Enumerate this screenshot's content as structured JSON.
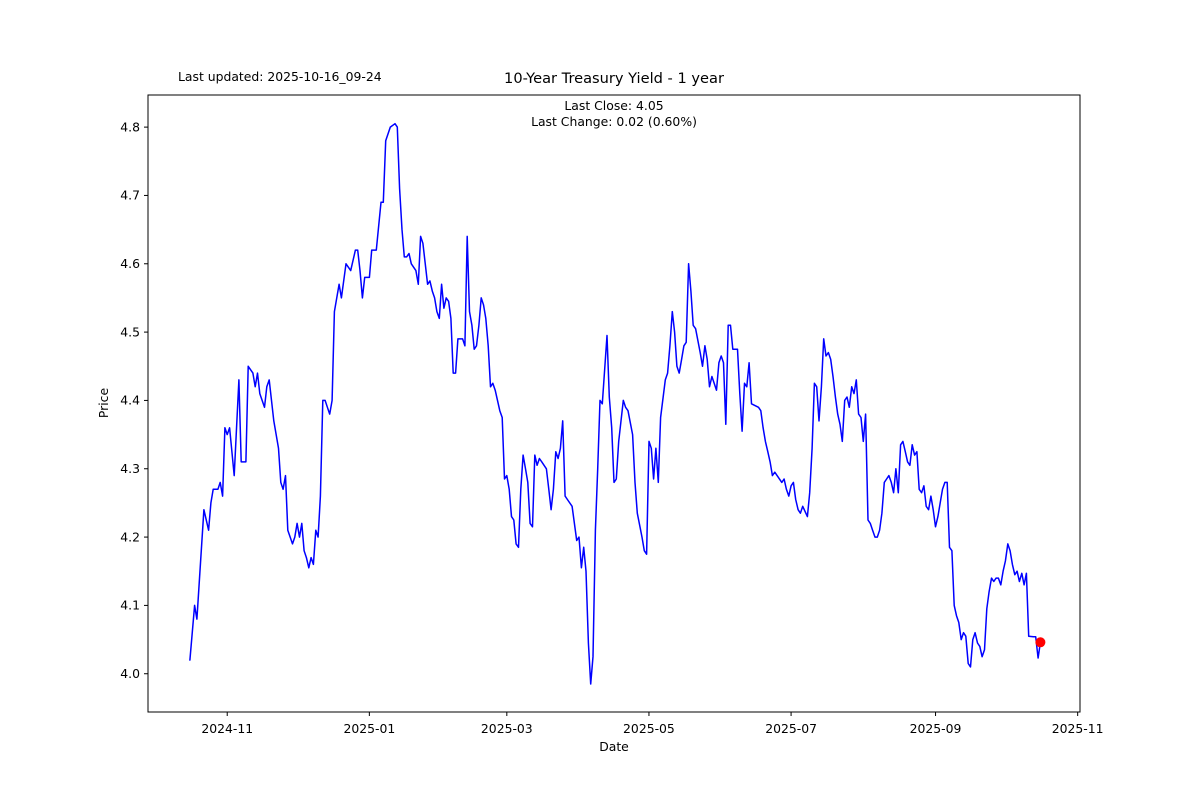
{
  "header": {
    "last_updated": "Last updated: 2025-10-16_09-24"
  },
  "chart_data": {
    "type": "line",
    "title": "10-Year Treasury Yield - 1 year",
    "annotation_line1": "Last Close: 4.05",
    "annotation_line2": "Last Change: 0.02 (0.60%)",
    "last_close": 4.05,
    "last_change": "0.02 (0.60%)",
    "xlabel": "Date",
    "ylabel": "Price",
    "grid": false,
    "legend": "none",
    "line_color": "#0000ff",
    "line_width": 1.5,
    "last_point_marker": {
      "color": "#ff0000",
      "radius": 5
    },
    "ylim": [
      3.944,
      4.847
    ],
    "xlim": [
      "2024-09-28",
      "2025-11-02"
    ],
    "yticks": [
      "4.0",
      "4.1",
      "4.2",
      "4.3",
      "4.4",
      "4.5",
      "4.6",
      "4.7",
      "4.8"
    ],
    "xticks": [
      {
        "date": "2024-11-01",
        "label": "2024-11"
      },
      {
        "date": "2025-01-01",
        "label": "2025-01"
      },
      {
        "date": "2025-03-01",
        "label": "2025-03"
      },
      {
        "date": "2025-05-01",
        "label": "2025-05"
      },
      {
        "date": "2025-07-01",
        "label": "2025-07"
      },
      {
        "date": "2025-09-01",
        "label": "2025-09"
      },
      {
        "date": "2025-11-01",
        "label": "2025-11"
      }
    ],
    "series": [
      [
        "2024-10-16",
        4.02
      ],
      [
        "2024-10-18",
        4.1
      ],
      [
        "2024-10-19",
        4.08
      ],
      [
        "2024-10-22",
        4.24
      ],
      [
        "2024-10-24",
        4.21
      ],
      [
        "2024-10-25",
        4.25
      ],
      [
        "2024-10-26",
        4.27
      ],
      [
        "2024-10-28",
        4.27
      ],
      [
        "2024-10-29",
        4.28
      ],
      [
        "2024-10-30",
        4.26
      ],
      [
        "2024-10-31",
        4.36
      ],
      [
        "2024-11-01",
        4.35
      ],
      [
        "2024-11-02",
        4.36
      ],
      [
        "2024-11-04",
        4.29
      ],
      [
        "2024-11-06",
        4.43
      ],
      [
        "2024-11-07",
        4.31
      ],
      [
        "2024-11-09",
        4.31
      ],
      [
        "2024-11-10",
        4.45
      ],
      [
        "2024-11-12",
        4.44
      ],
      [
        "2024-11-13",
        4.42
      ],
      [
        "2024-11-14",
        4.44
      ],
      [
        "2024-11-15",
        4.41
      ],
      [
        "2024-11-17",
        4.39
      ],
      [
        "2024-11-18",
        4.42
      ],
      [
        "2024-11-19",
        4.43
      ],
      [
        "2024-11-20",
        4.4
      ],
      [
        "2024-11-21",
        4.37
      ],
      [
        "2024-11-23",
        4.33
      ],
      [
        "2024-11-24",
        4.28
      ],
      [
        "2024-11-25",
        4.27
      ],
      [
        "2024-11-26",
        4.29
      ],
      [
        "2024-11-27",
        4.21
      ],
      [
        "2024-11-29",
        4.19
      ],
      [
        "2024-11-30",
        4.2
      ],
      [
        "2024-12-01",
        4.22
      ],
      [
        "2024-12-02",
        4.2
      ],
      [
        "2024-12-03",
        4.22
      ],
      [
        "2024-12-04",
        4.18
      ],
      [
        "2024-12-05",
        4.17
      ],
      [
        "2024-12-06",
        4.155
      ],
      [
        "2024-12-07",
        4.17
      ],
      [
        "2024-12-08",
        4.16
      ],
      [
        "2024-12-09",
        4.21
      ],
      [
        "2024-12-10",
        4.2
      ],
      [
        "2024-12-11",
        4.26
      ],
      [
        "2024-12-12",
        4.4
      ],
      [
        "2024-12-13",
        4.4
      ],
      [
        "2024-12-14",
        4.39
      ],
      [
        "2024-12-15",
        4.38
      ],
      [
        "2024-12-16",
        4.4
      ],
      [
        "2024-12-17",
        4.53
      ],
      [
        "2024-12-19",
        4.57
      ],
      [
        "2024-12-20",
        4.55
      ],
      [
        "2024-12-22",
        4.6
      ],
      [
        "2024-12-24",
        4.59
      ],
      [
        "2024-12-26",
        4.62
      ],
      [
        "2024-12-27",
        4.62
      ],
      [
        "2024-12-28",
        4.59
      ],
      [
        "2024-12-29",
        4.55
      ],
      [
        "2024-12-30",
        4.58
      ],
      [
        "2025-01-01",
        4.58
      ],
      [
        "2025-01-02",
        4.62
      ],
      [
        "2025-01-04",
        4.62
      ],
      [
        "2025-01-06",
        4.69
      ],
      [
        "2025-01-07",
        4.69
      ],
      [
        "2025-01-08",
        4.78
      ],
      [
        "2025-01-10",
        4.8
      ],
      [
        "2025-01-12",
        4.805
      ],
      [
        "2025-01-13",
        4.8
      ],
      [
        "2025-01-14",
        4.71
      ],
      [
        "2025-01-15",
        4.65
      ],
      [
        "2025-01-16",
        4.61
      ],
      [
        "2025-01-17",
        4.61
      ],
      [
        "2025-01-18",
        4.615
      ],
      [
        "2025-01-19",
        4.6
      ],
      [
        "2025-01-21",
        4.59
      ],
      [
        "2025-01-22",
        4.57
      ],
      [
        "2025-01-23",
        4.64
      ],
      [
        "2025-01-24",
        4.63
      ],
      [
        "2025-01-26",
        4.57
      ],
      [
        "2025-01-27",
        4.575
      ],
      [
        "2025-01-28",
        4.56
      ],
      [
        "2025-01-29",
        4.55
      ],
      [
        "2025-01-30",
        4.53
      ],
      [
        "2025-01-31",
        4.52
      ],
      [
        "2025-02-01",
        4.57
      ],
      [
        "2025-02-02",
        4.535
      ],
      [
        "2025-02-03",
        4.55
      ],
      [
        "2025-02-04",
        4.545
      ],
      [
        "2025-02-05",
        4.52
      ],
      [
        "2025-02-06",
        4.44
      ],
      [
        "2025-02-07",
        4.44
      ],
      [
        "2025-02-08",
        4.49
      ],
      [
        "2025-02-09",
        4.49
      ],
      [
        "2025-02-10",
        4.49
      ],
      [
        "2025-02-11",
        4.48
      ],
      [
        "2025-02-12",
        4.64
      ],
      [
        "2025-02-13",
        4.53
      ],
      [
        "2025-02-14",
        4.51
      ],
      [
        "2025-02-15",
        4.475
      ],
      [
        "2025-02-16",
        4.48
      ],
      [
        "2025-02-17",
        4.51
      ],
      [
        "2025-02-18",
        4.55
      ],
      [
        "2025-02-19",
        4.54
      ],
      [
        "2025-02-20",
        4.52
      ],
      [
        "2025-02-21",
        4.48
      ],
      [
        "2025-02-22",
        4.42
      ],
      [
        "2025-02-23",
        4.425
      ],
      [
        "2025-02-24",
        4.415
      ],
      [
        "2025-02-25",
        4.4
      ],
      [
        "2025-02-26",
        4.385
      ],
      [
        "2025-02-27",
        4.375
      ],
      [
        "2025-02-28",
        4.285
      ],
      [
        "2025-03-01",
        4.29
      ],
      [
        "2025-03-02",
        4.27
      ],
      [
        "2025-03-03",
        4.23
      ],
      [
        "2025-03-04",
        4.225
      ],
      [
        "2025-03-05",
        4.19
      ],
      [
        "2025-03-06",
        4.185
      ],
      [
        "2025-03-07",
        4.27
      ],
      [
        "2025-03-08",
        4.32
      ],
      [
        "2025-03-09",
        4.3
      ],
      [
        "2025-03-10",
        4.28
      ],
      [
        "2025-03-11",
        4.22
      ],
      [
        "2025-03-12",
        4.215
      ],
      [
        "2025-03-13",
        4.32
      ],
      [
        "2025-03-14",
        4.305
      ],
      [
        "2025-03-15",
        4.315
      ],
      [
        "2025-03-16",
        4.31
      ],
      [
        "2025-03-18",
        4.3
      ],
      [
        "2025-03-19",
        4.27
      ],
      [
        "2025-03-20",
        4.24
      ],
      [
        "2025-03-21",
        4.27
      ],
      [
        "2025-03-22",
        4.325
      ],
      [
        "2025-03-23",
        4.315
      ],
      [
        "2025-03-24",
        4.33
      ],
      [
        "2025-03-25",
        4.37
      ],
      [
        "2025-03-26",
        4.26
      ],
      [
        "2025-03-27",
        4.255
      ],
      [
        "2025-03-29",
        4.245
      ],
      [
        "2025-03-31",
        4.195
      ],
      [
        "2025-04-01",
        4.2
      ],
      [
        "2025-04-02",
        4.155
      ],
      [
        "2025-04-03",
        4.185
      ],
      [
        "2025-04-04",
        4.15
      ],
      [
        "2025-04-05",
        4.045
      ],
      [
        "2025-04-06",
        3.985
      ],
      [
        "2025-04-07",
        4.025
      ],
      [
        "2025-04-08",
        4.21
      ],
      [
        "2025-04-09",
        4.3
      ],
      [
        "2025-04-10",
        4.4
      ],
      [
        "2025-04-11",
        4.395
      ],
      [
        "2025-04-13",
        4.495
      ],
      [
        "2025-04-14",
        4.405
      ],
      [
        "2025-04-15",
        4.36
      ],
      [
        "2025-04-16",
        4.28
      ],
      [
        "2025-04-17",
        4.285
      ],
      [
        "2025-04-18",
        4.34
      ],
      [
        "2025-04-20",
        4.4
      ],
      [
        "2025-04-21",
        4.39
      ],
      [
        "2025-04-22",
        4.385
      ],
      [
        "2025-04-24",
        4.35
      ],
      [
        "2025-04-25",
        4.28
      ],
      [
        "2025-04-26",
        4.235
      ],
      [
        "2025-04-28",
        4.2
      ],
      [
        "2025-04-29",
        4.18
      ],
      [
        "2025-04-30",
        4.175
      ],
      [
        "2025-05-01",
        4.34
      ],
      [
        "2025-05-02",
        4.33
      ],
      [
        "2025-05-03",
        4.285
      ],
      [
        "2025-05-04",
        4.33
      ],
      [
        "2025-05-05",
        4.28
      ],
      [
        "2025-05-06",
        4.375
      ],
      [
        "2025-05-08",
        4.43
      ],
      [
        "2025-05-09",
        4.44
      ],
      [
        "2025-05-10",
        4.48
      ],
      [
        "2025-05-11",
        4.53
      ],
      [
        "2025-05-12",
        4.5
      ],
      [
        "2025-05-13",
        4.45
      ],
      [
        "2025-05-14",
        4.44
      ],
      [
        "2025-05-15",
        4.46
      ],
      [
        "2025-05-16",
        4.48
      ],
      [
        "2025-05-17",
        4.485
      ],
      [
        "2025-05-18",
        4.6
      ],
      [
        "2025-05-19",
        4.56
      ],
      [
        "2025-05-20",
        4.51
      ],
      [
        "2025-05-21",
        4.505
      ],
      [
        "2025-05-23",
        4.47
      ],
      [
        "2025-05-24",
        4.45
      ],
      [
        "2025-05-25",
        4.48
      ],
      [
        "2025-05-26",
        4.46
      ],
      [
        "2025-05-27",
        4.42
      ],
      [
        "2025-05-28",
        4.435
      ],
      [
        "2025-05-30",
        4.415
      ],
      [
        "2025-05-31",
        4.455
      ],
      [
        "2025-06-01",
        4.465
      ],
      [
        "2025-06-02",
        4.455
      ],
      [
        "2025-06-03",
        4.365
      ],
      [
        "2025-06-04",
        4.51
      ],
      [
        "2025-06-05",
        4.51
      ],
      [
        "2025-06-06",
        4.475
      ],
      [
        "2025-06-08",
        4.475
      ],
      [
        "2025-06-09",
        4.41
      ],
      [
        "2025-06-10",
        4.355
      ],
      [
        "2025-06-11",
        4.425
      ],
      [
        "2025-06-12",
        4.42
      ],
      [
        "2025-06-13",
        4.455
      ],
      [
        "2025-06-14",
        4.395
      ],
      [
        "2025-06-17",
        4.39
      ],
      [
        "2025-06-18",
        4.385
      ],
      [
        "2025-06-19",
        4.36
      ],
      [
        "2025-06-20",
        4.34
      ],
      [
        "2025-06-21",
        4.325
      ],
      [
        "2025-06-22",
        4.31
      ],
      [
        "2025-06-23",
        4.29
      ],
      [
        "2025-06-24",
        4.295
      ],
      [
        "2025-06-25",
        4.29
      ],
      [
        "2025-06-27",
        4.28
      ],
      [
        "2025-06-28",
        4.285
      ],
      [
        "2025-06-29",
        4.27
      ],
      [
        "2025-06-30",
        4.26
      ],
      [
        "2025-07-01",
        4.275
      ],
      [
        "2025-07-02",
        4.28
      ],
      [
        "2025-07-03",
        4.255
      ],
      [
        "2025-07-04",
        4.24
      ],
      [
        "2025-07-05",
        4.235
      ],
      [
        "2025-07-06",
        4.245
      ],
      [
        "2025-07-08",
        4.23
      ],
      [
        "2025-07-09",
        4.265
      ],
      [
        "2025-07-10",
        4.33
      ],
      [
        "2025-07-11",
        4.425
      ],
      [
        "2025-07-12",
        4.42
      ],
      [
        "2025-07-13",
        4.37
      ],
      [
        "2025-07-14",
        4.42
      ],
      [
        "2025-07-15",
        4.49
      ],
      [
        "2025-07-16",
        4.465
      ],
      [
        "2025-07-17",
        4.47
      ],
      [
        "2025-07-18",
        4.46
      ],
      [
        "2025-07-19",
        4.435
      ],
      [
        "2025-07-20",
        4.405
      ],
      [
        "2025-07-21",
        4.38
      ],
      [
        "2025-07-22",
        4.365
      ],
      [
        "2025-07-23",
        4.34
      ],
      [
        "2025-07-24",
        4.4
      ],
      [
        "2025-07-25",
        4.405
      ],
      [
        "2025-07-26",
        4.39
      ],
      [
        "2025-07-27",
        4.42
      ],
      [
        "2025-07-28",
        4.41
      ],
      [
        "2025-07-29",
        4.43
      ],
      [
        "2025-07-30",
        4.38
      ],
      [
        "2025-07-31",
        4.375
      ],
      [
        "2025-08-01",
        4.34
      ],
      [
        "2025-08-02",
        4.38
      ],
      [
        "2025-08-03",
        4.225
      ],
      [
        "2025-08-04",
        4.22
      ],
      [
        "2025-08-05",
        4.21
      ],
      [
        "2025-08-06",
        4.2
      ],
      [
        "2025-08-07",
        4.2
      ],
      [
        "2025-08-08",
        4.21
      ],
      [
        "2025-08-09",
        4.235
      ],
      [
        "2025-08-10",
        4.28
      ],
      [
        "2025-08-11",
        4.285
      ],
      [
        "2025-08-12",
        4.29
      ],
      [
        "2025-08-13",
        4.28
      ],
      [
        "2025-08-14",
        4.265
      ],
      [
        "2025-08-15",
        4.3
      ],
      [
        "2025-08-16",
        4.265
      ],
      [
        "2025-08-17",
        4.335
      ],
      [
        "2025-08-18",
        4.34
      ],
      [
        "2025-08-19",
        4.325
      ],
      [
        "2025-08-20",
        4.31
      ],
      [
        "2025-08-21",
        4.305
      ],
      [
        "2025-08-22",
        4.335
      ],
      [
        "2025-08-23",
        4.32
      ],
      [
        "2025-08-24",
        4.325
      ],
      [
        "2025-08-25",
        4.27
      ],
      [
        "2025-08-26",
        4.265
      ],
      [
        "2025-08-27",
        4.275
      ],
      [
        "2025-08-28",
        4.245
      ],
      [
        "2025-08-29",
        4.24
      ],
      [
        "2025-08-30",
        4.26
      ],
      [
        "2025-08-31",
        4.24
      ],
      [
        "2025-09-01",
        4.215
      ],
      [
        "2025-09-02",
        4.23
      ],
      [
        "2025-09-03",
        4.25
      ],
      [
        "2025-09-04",
        4.27
      ],
      [
        "2025-09-05",
        4.28
      ],
      [
        "2025-09-06",
        4.28
      ],
      [
        "2025-09-07",
        4.185
      ],
      [
        "2025-09-08",
        4.18
      ],
      [
        "2025-09-09",
        4.1
      ],
      [
        "2025-09-10",
        4.085
      ],
      [
        "2025-09-11",
        4.075
      ],
      [
        "2025-09-12",
        4.05
      ],
      [
        "2025-09-13",
        4.06
      ],
      [
        "2025-09-14",
        4.055
      ],
      [
        "2025-09-15",
        4.015
      ],
      [
        "2025-09-16",
        4.01
      ],
      [
        "2025-09-17",
        4.05
      ],
      [
        "2025-09-18",
        4.06
      ],
      [
        "2025-09-19",
        4.045
      ],
      [
        "2025-09-20",
        4.04
      ],
      [
        "2025-09-21",
        4.025
      ],
      [
        "2025-09-22",
        4.035
      ],
      [
        "2025-09-23",
        4.095
      ],
      [
        "2025-09-24",
        4.12
      ],
      [
        "2025-09-25",
        4.14
      ],
      [
        "2025-09-26",
        4.135
      ],
      [
        "2025-09-27",
        4.14
      ],
      [
        "2025-09-28",
        4.14
      ],
      [
        "2025-09-29",
        4.13
      ],
      [
        "2025-09-30",
        4.15
      ],
      [
        "2025-10-01",
        4.165
      ],
      [
        "2025-10-02",
        4.19
      ],
      [
        "2025-10-03",
        4.18
      ],
      [
        "2025-10-04",
        4.16
      ],
      [
        "2025-10-05",
        4.145
      ],
      [
        "2025-10-06",
        4.15
      ],
      [
        "2025-10-07",
        4.135
      ],
      [
        "2025-10-08",
        4.147
      ],
      [
        "2025-10-09",
        4.13
      ],
      [
        "2025-10-10",
        4.147
      ],
      [
        "2025-10-11",
        4.055
      ],
      [
        "2025-10-13",
        4.054
      ],
      [
        "2025-10-14",
        4.054
      ],
      [
        "2025-10-15",
        4.023
      ],
      [
        "2025-10-16",
        4.046
      ]
    ]
  }
}
